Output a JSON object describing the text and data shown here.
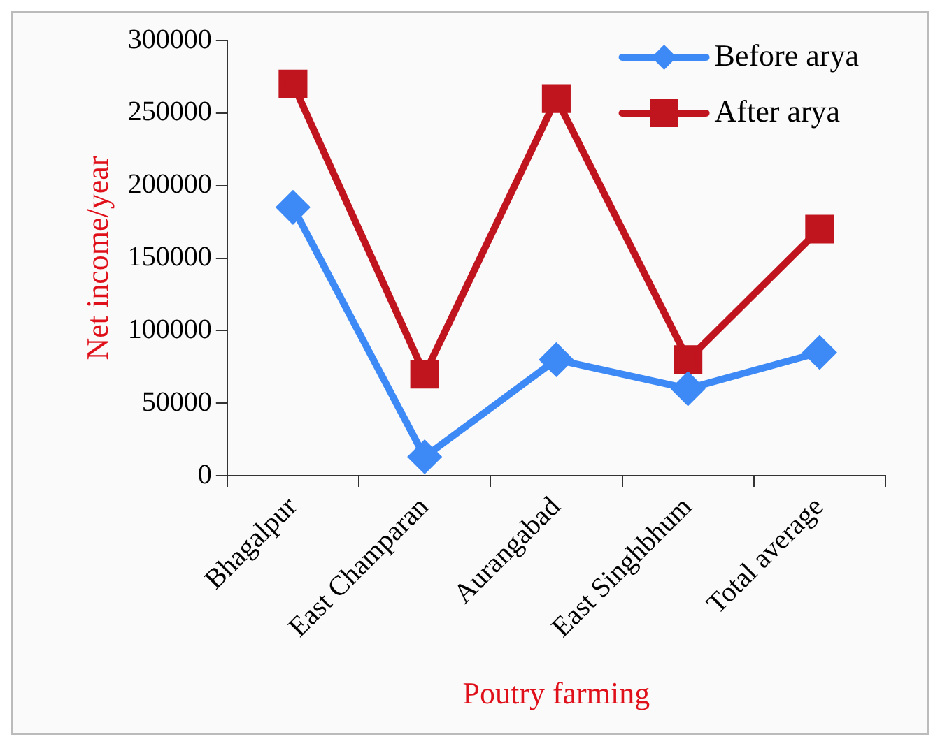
{
  "chart_data": {
    "type": "line",
    "xlabel": "Poutry farming",
    "ylabel": "Net income/year",
    "categories": [
      "Bhagalpur",
      "East Champaran",
      "Aurangabad",
      "East Singhbhum",
      "Total average"
    ],
    "series": [
      {
        "name": "Before arya",
        "color": "#3d8af7",
        "marker": "diamond",
        "values": [
          185000,
          13000,
          80000,
          60000,
          85000
        ]
      },
      {
        "name": "After arya",
        "color": "#c0141f",
        "marker": "square",
        "values": [
          270000,
          70000,
          260000,
          80000,
          170000
        ]
      }
    ],
    "ylim": [
      0,
      300000
    ],
    "yticks": [
      0,
      50000,
      100000,
      150000,
      200000,
      250000,
      300000
    ],
    "grid": false,
    "legend": "top right"
  }
}
